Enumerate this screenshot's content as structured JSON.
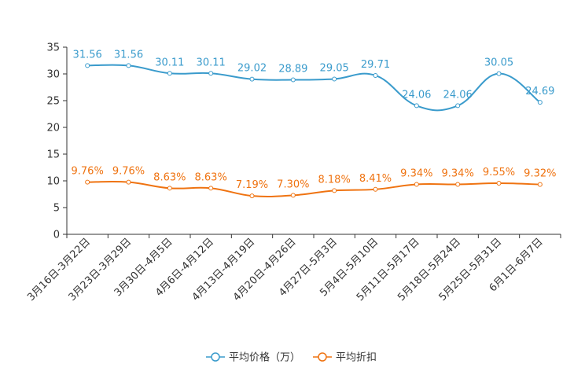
{
  "chart_data": {
    "type": "line",
    "title": "",
    "xlabel": "",
    "ylabel": "",
    "ylim": [
      0,
      35
    ],
    "yticks": [
      0,
      5,
      10,
      15,
      20,
      25,
      30,
      35
    ],
    "grid": false,
    "legend_position": "bottom",
    "categories": [
      "3月16日-3月22日",
      "3月23日-3月29日",
      "3月30日-4月5日",
      "4月6日-4月12日",
      "4月13日-4月19日",
      "4月20日-4月26日",
      "4月27日-5月3日",
      "5月4日-5月10日",
      "5月11日-5月17日",
      "5月18日-5月24日",
      "5月25日-5月31日",
      "6月1日-6月7日"
    ],
    "series": [
      {
        "name": "平均价格（万）",
        "color": "#3a9bcc",
        "values": [
          31.56,
          31.56,
          30.11,
          30.11,
          29.02,
          28.89,
          29.05,
          29.71,
          24.06,
          24.06,
          30.05,
          24.69
        ],
        "labels": [
          "31.56",
          "31.56",
          "30.11",
          "30.11",
          "29.02",
          "28.89",
          "29.05",
          "29.71",
          "24.06",
          "24.06",
          "30.05",
          "24.69"
        ]
      },
      {
        "name": "平均折扣",
        "color": "#ef7311",
        "values": [
          9.76,
          9.76,
          8.63,
          8.63,
          7.19,
          7.3,
          8.18,
          8.41,
          9.34,
          9.34,
          9.55,
          9.32
        ],
        "labels": [
          "9.76%",
          "9.76%",
          "8.63%",
          "8.63%",
          "7.19%",
          "7.30%",
          "8.18%",
          "8.41%",
          "9.34%",
          "9.34%",
          "9.55%",
          "9.32%"
        ]
      }
    ]
  }
}
